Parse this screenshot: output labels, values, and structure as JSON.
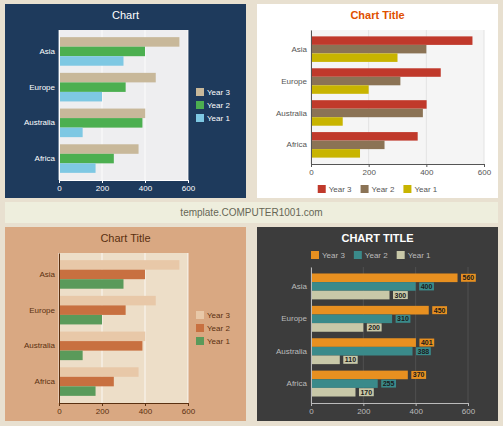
{
  "chart_data": [
    {
      "type": "bar",
      "orientation": "horizontal",
      "title": "Chart",
      "categories": [
        "Africa",
        "Australia",
        "Europe",
        "Asia"
      ],
      "series": [
        {
          "name": "Year 3",
          "color": "#c8b89a",
          "values": [
            370,
            401,
            450,
            560
          ]
        },
        {
          "name": "Year 2",
          "color": "#4caf50",
          "values": [
            255,
            388,
            310,
            400
          ]
        },
        {
          "name": "Year 1",
          "color": "#7ec8e3",
          "values": [
            170,
            110,
            200,
            300
          ]
        }
      ],
      "xlim": [
        0,
        600
      ],
      "xticks": [
        0,
        200,
        400,
        600
      ],
      "grid": true,
      "legend": "right"
    },
    {
      "type": "bar",
      "orientation": "horizontal",
      "title": "Chart Title",
      "categories": [
        "Africa",
        "Australia",
        "Europe",
        "Asia"
      ],
      "series": [
        {
          "name": "Year 3",
          "color": "#c0392b",
          "values": [
            370,
            401,
            450,
            560
          ]
        },
        {
          "name": "Year 2",
          "color": "#8b7355",
          "values": [
            255,
            388,
            310,
            400
          ]
        },
        {
          "name": "Year 1",
          "color": "#c8b400",
          "values": [
            170,
            110,
            200,
            300
          ]
        }
      ],
      "xlim": [
        0,
        600
      ],
      "xticks": [
        0,
        200,
        400,
        600
      ],
      "grid": true,
      "legend": "bottom"
    },
    {
      "type": "bar",
      "orientation": "horizontal",
      "title": "Chart Title",
      "categories": [
        "Africa",
        "Australia",
        "Europe",
        "Asia"
      ],
      "series": [
        {
          "name": "Year 3",
          "color": "#e8c8a8",
          "values": [
            370,
            401,
            450,
            560
          ]
        },
        {
          "name": "Year 2",
          "color": "#c87040",
          "values": [
            255,
            388,
            310,
            400
          ]
        },
        {
          "name": "Year 1",
          "color": "#5a9a5a",
          "values": [
            170,
            110,
            200,
            300
          ]
        }
      ],
      "xlim": [
        0,
        600
      ],
      "xticks": [
        0,
        200,
        400,
        600
      ],
      "grid": true,
      "legend": "right"
    },
    {
      "type": "bar",
      "orientation": "horizontal",
      "title": "CHART TITLE",
      "categories": [
        "Africa",
        "Australia",
        "Europe",
        "Asia"
      ],
      "series": [
        {
          "name": "Year 3",
          "color": "#e89020",
          "values": [
            370,
            401,
            450,
            560
          ]
        },
        {
          "name": "Year 2",
          "color": "#3a8a8a",
          "values": [
            255,
            388,
            310,
            400
          ]
        },
        {
          "name": "Year 1",
          "color": "#c8c8a8",
          "values": [
            170,
            110,
            200,
            300
          ]
        }
      ],
      "xlim": [
        0,
        600
      ],
      "xticks": [
        0,
        200,
        400,
        600
      ],
      "grid": true,
      "legend": "top",
      "data_labels": true
    }
  ],
  "watermark": "template.COMPUTER1001.com"
}
